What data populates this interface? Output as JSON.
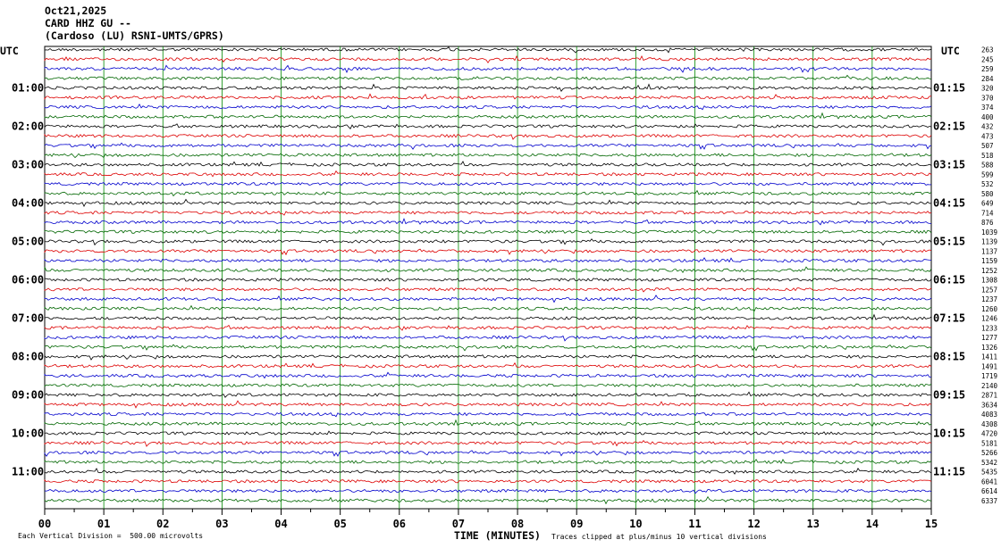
{
  "header": {
    "date": "Oct21,2025",
    "station": "CARD HHZ GU --",
    "network": "(Cardoso (LU) RSNI-UMTS/GPRS)"
  },
  "utc_left_label": "UTC",
  "utc_right_label": "UTC",
  "footer": {
    "corner_mark": "",
    "scale_note": "Each Vertical Division =  500.00 microvolts",
    "clip_note": "Traces clipped at plus/minus 10 vertical divisions"
  },
  "colors": {
    "trace_cycle": [
      "#000000",
      "#dd0000",
      "#0000cc",
      "#006600"
    ],
    "grid": "#008800"
  },
  "chart_data": {
    "type": "line",
    "title": "",
    "xlabel": "TIME (MINUTES)",
    "ylabel": "",
    "xlim": [
      0,
      15
    ],
    "x_ticks": [
      "00",
      "01",
      "02",
      "03",
      "04",
      "05",
      "06",
      "07",
      "08",
      "09",
      "10",
      "11",
      "12",
      "13",
      "14",
      "15"
    ],
    "traces_per_hour": 4,
    "trace_count": 48,
    "left_hour_labels": [
      "01:00",
      "02:00",
      "03:00",
      "04:00",
      "05:00",
      "06:00",
      "07:00",
      "08:00",
      "09:00",
      "10:00",
      "11:00"
    ],
    "right_hour_labels": [
      "01:15",
      "02:15",
      "03:15",
      "04:15",
      "05:15",
      "06:15",
      "07:15",
      "08:15",
      "09:15",
      "10:15",
      "11:15"
    ],
    "trace_amplitudes": [
      "263",
      "245",
      "259",
      "284",
      "320",
      "370",
      "374",
      "400",
      "432",
      "473",
      "507",
      "518",
      "588",
      "599",
      "532",
      "580",
      "649",
      "714",
      "876",
      "1039",
      "1139",
      "1137",
      "1159",
      "1252",
      "1308",
      "1257",
      "1237",
      "1260",
      "1246",
      "1233",
      "1277",
      "1326",
      "1411",
      "1491",
      "1719",
      "2140",
      "2871",
      "3634",
      "4083",
      "4308",
      "4720",
      "5181",
      "5266",
      "5342",
      "5435",
      "6041",
      "6614",
      "6337"
    ]
  }
}
